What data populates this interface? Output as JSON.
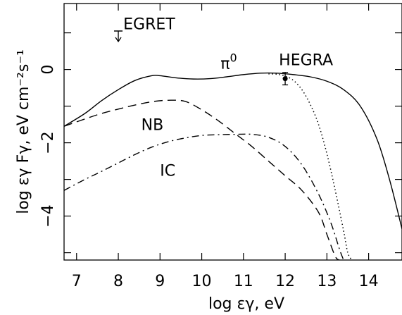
{
  "chart_data": {
    "type": "line",
    "title": "",
    "xlabel": "log εγ, eV",
    "ylabel": "log εγ Fγ, eV cm⁻²s⁻¹",
    "xlim": [
      6.7,
      14.8
    ],
    "ylim": [
      -5.2,
      1.8
    ],
    "grid": false,
    "x_ticks": [
      7,
      8,
      9,
      10,
      11,
      12,
      13,
      14
    ],
    "y_ticks_labeled": [
      0,
      -2,
      -4
    ],
    "y_ticks_minor": [
      1,
      -1,
      -3,
      -5
    ],
    "series": [
      {
        "name": "π⁰",
        "style": "solid",
        "x": [
          6.7,
          7.2,
          7.6,
          8.0,
          8.4,
          8.8,
          9.0,
          9.4,
          9.8,
          10.2,
          10.6,
          11.0,
          11.4,
          11.8,
          12.2,
          12.6,
          13.0,
          13.4,
          13.8,
          14.2,
          14.5,
          14.8
        ],
        "y": [
          -1.55,
          -1.2,
          -0.85,
          -0.55,
          -0.3,
          -0.17,
          -0.17,
          -0.23,
          -0.26,
          -0.25,
          -0.2,
          -0.14,
          -0.1,
          -0.1,
          -0.14,
          -0.2,
          -0.32,
          -0.55,
          -1.0,
          -1.9,
          -3.0,
          -4.35
        ]
      },
      {
        "name": "NB",
        "style": "dashed",
        "x": [
          6.7,
          7.2,
          7.6,
          8.0,
          8.4,
          8.8,
          9.2,
          9.6,
          10.0,
          10.4,
          10.8,
          11.2,
          11.6,
          12.0,
          12.4,
          12.8,
          13.0,
          13.2,
          13.3
        ],
        "y": [
          -1.55,
          -1.35,
          -1.2,
          -1.08,
          -0.97,
          -0.88,
          -0.84,
          -0.87,
          -1.1,
          -1.4,
          -1.75,
          -2.1,
          -2.5,
          -2.9,
          -3.3,
          -3.9,
          -4.5,
          -5.1,
          -5.2
        ]
      },
      {
        "name": "IC",
        "style": "dashdot",
        "x": [
          6.7,
          7.2,
          7.6,
          8.0,
          8.4,
          8.8,
          9.2,
          9.6,
          10.0,
          10.4,
          10.8,
          11.2,
          11.6,
          12.0,
          12.4,
          12.8,
          13.1,
          13.3,
          13.4
        ],
        "y": [
          -3.3,
          -3.0,
          -2.78,
          -2.55,
          -2.32,
          -2.12,
          -1.97,
          -1.87,
          -1.8,
          -1.78,
          -1.77,
          -1.77,
          -1.85,
          -2.1,
          -2.6,
          -3.4,
          -4.2,
          -4.9,
          -5.2
        ]
      },
      {
        "name": "",
        "style": "dotted",
        "x": [
          11.6,
          11.8,
          12.0,
          12.2,
          12.4,
          12.6,
          12.8,
          13.0,
          13.2,
          13.4,
          13.5,
          13.6
        ],
        "y": [
          -0.12,
          -0.13,
          -0.18,
          -0.3,
          -0.55,
          -0.95,
          -1.5,
          -2.3,
          -3.3,
          -4.4,
          -5.0,
          -5.2
        ]
      }
    ],
    "annotations": [
      {
        "text": "EGRET",
        "x": 8.12,
        "y": 1.1
      },
      {
        "text": "HEGRA",
        "x": 11.85,
        "y": 0.12
      },
      {
        "text": "π",
        "sup": "0",
        "x": 10.45,
        "y": 0.02
      },
      {
        "text": "NB",
        "x": 8.55,
        "y": -1.65
      },
      {
        "text": "IC",
        "x": 9.0,
        "y": -2.9
      }
    ],
    "upper_limit": {
      "label": "EGRET",
      "x": 8.0,
      "y": 1.05
    },
    "data_points": [
      {
        "label": "HEGRA",
        "x": 12.0,
        "y": -0.25,
        "err_low": -0.42,
        "err_high": -0.08
      }
    ]
  }
}
